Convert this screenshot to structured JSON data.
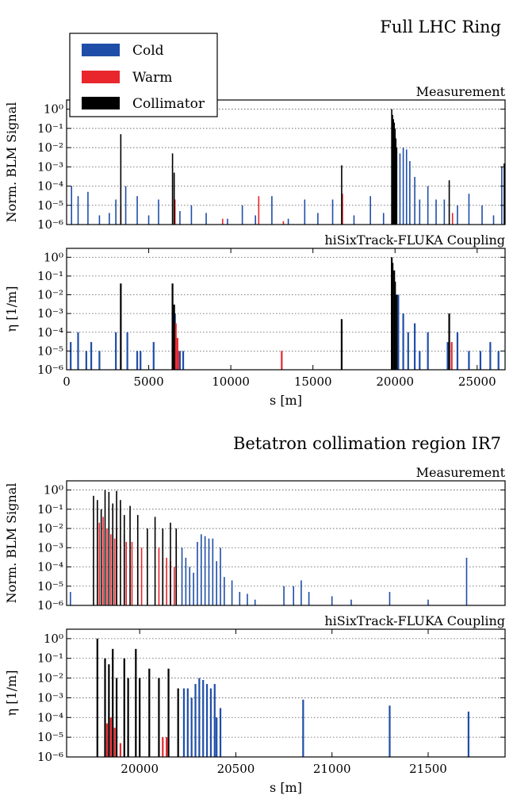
{
  "colors": {
    "cold": "#1f4ea8",
    "warm": "#e8262c",
    "collimator": "#000000",
    "grid": "#555555"
  },
  "legend": {
    "placement": "top-left",
    "items": [
      {
        "key": "cold",
        "label": "Cold"
      },
      {
        "key": "warm",
        "label": "Warm"
      },
      {
        "key": "collimator",
        "label": "Collimator"
      }
    ]
  },
  "chart_data": [
    {
      "type": "bar",
      "section_title": "Full LHC Ring",
      "title": "Measurement",
      "ylabel": "Norm. BLM Signal",
      "yscale": "log",
      "xlim": [
        0,
        26700
      ],
      "ylim": [
        1e-06,
        3
      ],
      "xticks": [],
      "xlabel": "",
      "yticks": [
        "10⁰",
        "10⁻¹",
        "10⁻²",
        "10⁻³",
        "10⁻⁴",
        "10⁻⁵",
        "10⁻⁶"
      ],
      "grid": true,
      "series": [
        {
          "key": "cold",
          "points": [
            [
              300,
              0.0001
            ],
            [
              700,
              3e-05
            ],
            [
              1300,
              5e-05
            ],
            [
              2000,
              3e-06
            ],
            [
              2600,
              4e-06
            ],
            [
              3000,
              2e-05
            ],
            [
              3600,
              0.0001
            ],
            [
              4300,
              3e-05
            ],
            [
              5000,
              3e-06
            ],
            [
              5600,
              2e-05
            ],
            [
              6900,
              5e-06
            ],
            [
              7600,
              1e-05
            ],
            [
              8500,
              4e-06
            ],
            [
              9800,
              2e-06
            ],
            [
              10700,
              1e-05
            ],
            [
              11500,
              3e-06
            ],
            [
              12500,
              3e-05
            ],
            [
              13500,
              2e-06
            ],
            [
              14500,
              2e-05
            ],
            [
              15300,
              4e-06
            ],
            [
              16200,
              2e-05
            ],
            [
              17500,
              3e-06
            ],
            [
              18500,
              3e-05
            ],
            [
              19300,
              4e-06
            ],
            [
              20300,
              0.005
            ],
            [
              20500,
              0.01
            ],
            [
              20700,
              0.008
            ],
            [
              20900,
              0.002
            ],
            [
              21200,
              0.0003
            ],
            [
              21500,
              2e-05
            ],
            [
              22000,
              0.0001
            ],
            [
              22500,
              2e-05
            ],
            [
              23000,
              2e-05
            ],
            [
              23800,
              1e-05
            ],
            [
              24500,
              4e-05
            ],
            [
              25300,
              1e-05
            ],
            [
              26000,
              3e-06
            ],
            [
              26500,
              0.001
            ]
          ]
        },
        {
          "key": "warm",
          "points": [
            [
              3300,
              1e-05
            ],
            [
              6600,
              2e-05
            ],
            [
              9500,
              2e-06
            ],
            [
              11700,
              3e-05
            ],
            [
              13200,
              1.5e-06
            ],
            [
              16800,
              4e-05
            ],
            [
              19900,
              0.1
            ],
            [
              23500,
              4e-06
            ]
          ]
        },
        {
          "key": "collimator",
          "points": [
            [
              3300,
              0.05
            ],
            [
              6450,
              0.005
            ],
            [
              6550,
              0.0005
            ],
            [
              16750,
              0.0012
            ],
            [
              19800,
              1.0
            ],
            [
              19850,
              0.5
            ],
            [
              19900,
              0.3
            ],
            [
              19950,
              0.2
            ],
            [
              20000,
              0.1
            ],
            [
              20050,
              0.03
            ],
            [
              20100,
              0.01
            ],
            [
              23300,
              0.0002
            ],
            [
              26650,
              0.0015
            ]
          ]
        }
      ]
    },
    {
      "type": "bar",
      "title": "hiSixTrack-FLUKA Coupling",
      "ylabel": "η [1/m]",
      "yscale": "log",
      "xlim": [
        0,
        26700
      ],
      "ylim": [
        1e-06,
        3
      ],
      "xticks": [
        "0",
        "5000",
        "10000",
        "15000",
        "20000",
        "25000"
      ],
      "xtick_values": [
        0,
        5000,
        10000,
        15000,
        20000,
        25000
      ],
      "xlabel": "s [m]",
      "yticks": [
        "10⁰",
        "10⁻¹",
        "10⁻²",
        "10⁻³",
        "10⁻⁴",
        "10⁻⁵",
        "10⁻⁶"
      ],
      "grid": true,
      "series": [
        {
          "key": "cold",
          "points": [
            [
              250,
              3e-05
            ],
            [
              700,
              0.0001
            ],
            [
              1200,
              1e-05
            ],
            [
              1500,
              3e-05
            ],
            [
              2000,
              1e-05
            ],
            [
              3000,
              0.0001
            ],
            [
              3700,
              0.0001
            ],
            [
              4300,
              1e-05
            ],
            [
              4500,
              1e-05
            ],
            [
              5300,
              3e-05
            ],
            [
              6600,
              0.001
            ],
            [
              6900,
              1e-05
            ],
            [
              7100,
              1e-05
            ],
            [
              20200,
              0.01
            ],
            [
              20500,
              0.001
            ],
            [
              20800,
              0.0001
            ],
            [
              21200,
              0.0003
            ],
            [
              21500,
              1e-05
            ],
            [
              22000,
              0.0001
            ],
            [
              23200,
              3e-05
            ],
            [
              23800,
              0.0001
            ],
            [
              24500,
              1e-05
            ],
            [
              25200,
              1e-05
            ],
            [
              25800,
              3e-05
            ],
            [
              26300,
              1e-05
            ]
          ]
        },
        {
          "key": "warm",
          "points": [
            [
              6650,
              0.0003
            ],
            [
              6750,
              5e-05
            ],
            [
              6800,
              1e-05
            ],
            [
              13100,
              1e-05
            ],
            [
              23450,
              3e-05
            ]
          ]
        },
        {
          "key": "collimator",
          "points": [
            [
              3300,
              0.04
            ],
            [
              6450,
              0.04
            ],
            [
              6550,
              0.003
            ],
            [
              16750,
              0.0005
            ],
            [
              19800,
              1.0
            ],
            [
              19850,
              0.5
            ],
            [
              19950,
              0.2
            ],
            [
              20000,
              0.05
            ],
            [
              20100,
              0.01
            ],
            [
              23300,
              0.001
            ]
          ]
        }
      ]
    },
    {
      "type": "bar",
      "section_title": "Betatron collimation region IR7",
      "title": "Measurement",
      "ylabel": "Norm. BLM Signal",
      "yscale": "log",
      "xlim": [
        19620,
        21900
      ],
      "ylim": [
        1e-06,
        3
      ],
      "xticks": [],
      "xlabel": "",
      "yticks": [
        "10⁰",
        "10⁻¹",
        "10⁻²",
        "10⁻³",
        "10⁻⁴",
        "10⁻⁵",
        "10⁻⁶"
      ],
      "grid": true,
      "series": [
        {
          "key": "cold",
          "points": [
            [
              19640,
              5e-06
            ],
            [
              20190,
              0.002
            ],
            [
              20220,
              0.001
            ],
            [
              20240,
              0.0003
            ],
            [
              20260,
              0.0001
            ],
            [
              20280,
              5e-05
            ],
            [
              20300,
              0.002
            ],
            [
              20320,
              0.005
            ],
            [
              20340,
              0.004
            ],
            [
              20360,
              0.003
            ],
            [
              20380,
              0.003
            ],
            [
              20400,
              0.0002
            ],
            [
              20420,
              0.001
            ],
            [
              20440,
              3e-05
            ],
            [
              20480,
              2e-05
            ],
            [
              20520,
              5e-06
            ],
            [
              20560,
              4e-06
            ],
            [
              20600,
              2e-06
            ],
            [
              20750,
              1e-05
            ],
            [
              20800,
              1e-05
            ],
            [
              20840,
              2e-05
            ],
            [
              20880,
              5e-06
            ],
            [
              21000,
              3e-06
            ],
            [
              21100,
              2e-06
            ],
            [
              21300,
              5e-06
            ],
            [
              21500,
              2e-06
            ],
            [
              21700,
              0.0003
            ]
          ]
        },
        {
          "key": "warm",
          "points": [
            [
              19790,
              0.02
            ],
            [
              19810,
              0.04
            ],
            [
              19830,
              0.01
            ],
            [
              19850,
              0.005
            ],
            [
              19870,
              0.003
            ],
            [
              19880,
              0.01
            ],
            [
              19920,
              0.005
            ],
            [
              19930,
              0.002
            ],
            [
              19960,
              0.002
            ],
            [
              19990,
              0.001
            ],
            [
              20010,
              0.001
            ],
            [
              20100,
              0.001
            ],
            [
              20120,
              0.0003
            ],
            [
              20140,
              0.0003
            ],
            [
              20160,
              0.0002
            ],
            [
              20180,
              0.0001
            ]
          ]
        },
        {
          "key": "collimator",
          "points": [
            [
              19760,
              0.5
            ],
            [
              19780,
              0.3
            ],
            [
              19800,
              0.1
            ],
            [
              19820,
              1.0
            ],
            [
              19840,
              0.8
            ],
            [
              19860,
              0.2
            ],
            [
              19880,
              0.9
            ],
            [
              19900,
              0.3
            ],
            [
              19920,
              0.05
            ],
            [
              19950,
              0.15
            ],
            [
              19990,
              0.05
            ],
            [
              20040,
              0.01
            ],
            [
              20080,
              0.04
            ],
            [
              20120,
              0.01
            ],
            [
              20160,
              0.02
            ],
            [
              20190,
              0.01
            ]
          ]
        }
      ]
    },
    {
      "type": "bar",
      "title": "hiSixTrack-FLUKA Coupling",
      "ylabel": "η [1/m]",
      "yscale": "log",
      "xlim": [
        19620,
        21900
      ],
      "ylim": [
        1e-06,
        3
      ],
      "xticks": [
        "20000",
        "20500",
        "21000",
        "21500"
      ],
      "xtick_values": [
        20000,
        20500,
        21000,
        21500
      ],
      "xlabel": "s [m]",
      "yticks": [
        "10⁰",
        "10⁻¹",
        "10⁻²",
        "10⁻³",
        "10⁻⁴",
        "10⁻⁵",
        "10⁻⁶"
      ],
      "grid": true,
      "series": [
        {
          "key": "cold",
          "points": [
            [
              20230,
              0.003
            ],
            [
              20250,
              0.003
            ],
            [
              20270,
              0.001
            ],
            [
              20290,
              0.005
            ],
            [
              20310,
              0.01
            ],
            [
              20330,
              0.008
            ],
            [
              20350,
              0.005
            ],
            [
              20370,
              0.003
            ],
            [
              20390,
              0.005
            ],
            [
              20400,
              0.0001
            ],
            [
              20420,
              0.0003
            ],
            [
              20850,
              0.0008
            ],
            [
              21300,
              0.0004
            ],
            [
              21710,
              0.0002
            ]
          ]
        },
        {
          "key": "warm",
          "points": [
            [
              19830,
              5e-05
            ],
            [
              19850,
              0.0001
            ],
            [
              19870,
              3e-05
            ],
            [
              19900,
              5e-06
            ],
            [
              20120,
              1e-05
            ],
            [
              20140,
              1e-05
            ]
          ]
        },
        {
          "key": "collimator",
          "points": [
            [
              19780,
              1.0
            ],
            [
              19820,
              0.1
            ],
            [
              19840,
              0.05
            ],
            [
              19860,
              0.3
            ],
            [
              19880,
              0.01
            ],
            [
              19920,
              0.1
            ],
            [
              19940,
              0.01
            ],
            [
              19980,
              0.3
            ],
            [
              20000,
              0.01
            ],
            [
              20050,
              0.03
            ],
            [
              20100,
              0.01
            ],
            [
              20150,
              0.03
            ],
            [
              20200,
              0.003
            ]
          ]
        }
      ]
    }
  ]
}
